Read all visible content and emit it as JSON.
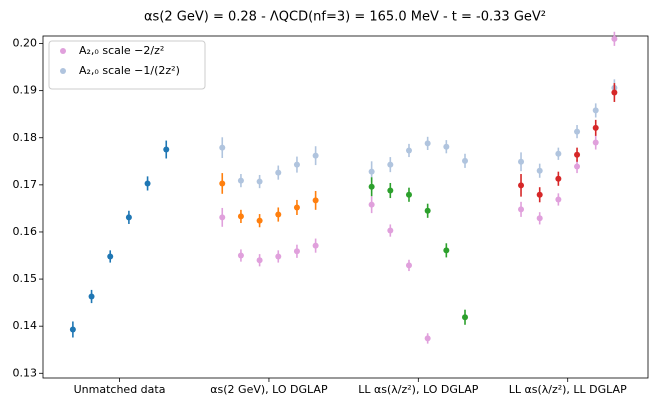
{
  "chart_data": {
    "type": "errorbar",
    "title": "αs(2 GeV) = 0.28 - ΛQCD(nf=3) = 165.0 MeV - t = -0.33 GeV²",
    "xlim": [
      -1.6,
      30.8
    ],
    "xticks": [
      {
        "value": 2.5,
        "label": "Unmatched data"
      },
      {
        "value": 10.5,
        "label": "αs(2 GeV), LO DGLAP"
      },
      {
        "value": 18.5,
        "label": "LL αs(λ/z²), LO DGLAP"
      },
      {
        "value": 26.5,
        "label": "LL αs(λ/z²), LL DGLAP"
      }
    ],
    "ylim": [
      0.129,
      0.2016
    ],
    "yticks": [
      0.13,
      0.14,
      0.15,
      0.16,
      0.17,
      0.18,
      0.19,
      {
        "value": 0.2,
        "label": "0.20"
      }
    ],
    "legend": "upper left",
    "series": [
      {
        "name": "A₂,₀ scale −2/z²",
        "color": "#e0a0dc",
        "x": [
          8,
          9,
          10,
          11,
          12,
          13,
          16,
          17,
          18,
          19,
          20,
          21,
          24,
          25,
          26,
          27,
          28,
          29
        ],
        "values": [
          0.1631,
          0.155,
          0.154,
          0.1548,
          0.1559,
          0.1571,
          0.1658,
          0.1603,
          0.1529,
          0.1374,
          null,
          null,
          0.1648,
          0.1629,
          0.1669,
          0.1739,
          0.179,
          0.201
        ],
        "errors": [
          0.002,
          0.0013,
          0.0013,
          0.0013,
          0.0014,
          0.0015,
          0.0018,
          0.0013,
          0.0012,
          0.0011,
          null,
          null,
          0.0016,
          0.0013,
          0.0013,
          0.0014,
          0.0015,
          0.0015
        ]
      },
      {
        "name": "A₂,₀ scale −1/(2z²)",
        "color": "#b0c4de",
        "x": [
          8,
          9,
          10,
          11,
          12,
          13,
          16,
          17,
          18,
          19,
          20,
          21,
          24,
          25,
          26,
          27,
          28,
          29
        ],
        "values": [
          0.1779,
          0.1709,
          0.1707,
          0.1726,
          0.1743,
          0.1762,
          0.1728,
          0.1743,
          0.1773,
          0.1788,
          0.1781,
          0.1751,
          0.1749,
          0.173,
          0.1766,
          0.1813,
          0.1858,
          0.1906
        ],
        "errors": [
          0.0022,
          0.0014,
          0.0014,
          0.0015,
          0.0017,
          0.002,
          0.0022,
          0.0016,
          0.0014,
          0.0014,
          0.0014,
          0.0015,
          0.002,
          0.0015,
          0.0013,
          0.0014,
          0.0015,
          0.0018
        ]
      },
      {
        "color": "#1f77b4",
        "x": [
          0,
          1,
          2,
          3,
          4,
          5
        ],
        "values": [
          0.1393,
          0.1463,
          0.1548,
          0.1631,
          0.1703,
          0.1775
        ],
        "errors": [
          0.0017,
          0.0014,
          0.0013,
          0.0014,
          0.0015,
          0.0019
        ]
      },
      {
        "color": "#ff7f0e",
        "x": [
          8,
          9,
          10,
          11,
          12,
          13
        ],
        "values": [
          0.1703,
          0.1633,
          0.1624,
          0.1637,
          0.1652,
          0.1667
        ],
        "errors": [
          0.0022,
          0.0014,
          0.0014,
          0.0015,
          0.0016,
          0.002
        ]
      },
      {
        "color": "#2ca02c",
        "x": [
          16,
          17,
          18,
          19,
          20,
          21
        ],
        "values": [
          0.1696,
          0.1688,
          0.1679,
          0.1645,
          0.1561,
          0.1419
        ],
        "errors": [
          0.002,
          0.0016,
          0.0015,
          0.0015,
          0.0015,
          0.0016
        ]
      },
      {
        "color": "#d62728",
        "x": [
          24,
          25,
          26,
          27,
          28,
          29
        ],
        "values": [
          0.1699,
          0.1679,
          0.1713,
          0.1764,
          0.1821,
          0.1896
        ],
        "errors": [
          0.0024,
          0.0016,
          0.0015,
          0.0015,
          0.0017,
          0.002
        ]
      }
    ]
  }
}
